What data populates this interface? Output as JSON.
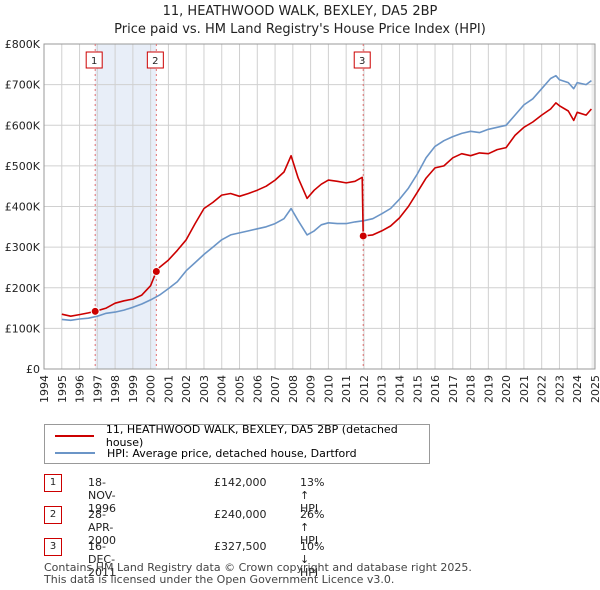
{
  "title_line1": "11, HEATHWOOD WALK, BEXLEY, DA5 2BP",
  "title_line2": "Price paid vs. HM Land Registry's House Price Index (HPI)",
  "colors": {
    "property": "#cc0000",
    "hpi": "#6b95c7",
    "shade": "#e8eef8",
    "grid": "#d0d0d0",
    "marker_line": "#e07070"
  },
  "legend": {
    "property_label": "11, HEATHWOOD WALK, BEXLEY, DA5 2BP (detached house)",
    "hpi_label": "HPI: Average price, detached house, Dartford"
  },
  "sales": [
    {
      "num": "1",
      "date": "18-NOV-1996",
      "price": "£142,000",
      "hpi": "13% ↑ HPI"
    },
    {
      "num": "2",
      "date": "28-APR-2000",
      "price": "£240,000",
      "hpi": "26% ↑ HPI"
    },
    {
      "num": "3",
      "date": "16-DEC-2011",
      "price": "£327,500",
      "hpi": "10% ↓ HPI"
    }
  ],
  "footer_line1": "Contains HM Land Registry data © Crown copyright and database right 2025.",
  "footer_line2": "This data is licensed under the Open Government Licence v3.0.",
  "chart_data": {
    "type": "line",
    "title": "11, HEATHWOOD WALK, BEXLEY, DA5 2BP — Price paid vs. HM Land Registry's House Price Index (HPI)",
    "xlim": [
      1994,
      2025
    ],
    "ylim": [
      0,
      800000
    ],
    "x_ticks": [
      1994,
      1995,
      1996,
      1997,
      1998,
      1999,
      2000,
      2001,
      2002,
      2003,
      2004,
      2005,
      2006,
      2007,
      2008,
      2009,
      2010,
      2011,
      2012,
      2013,
      2014,
      2015,
      2016,
      2017,
      2018,
      2019,
      2020,
      2021,
      2022,
      2023,
      2024,
      2025
    ],
    "y_ticks": [
      {
        "value": 0,
        "label": "£0"
      },
      {
        "value": 100000,
        "label": "£100K"
      },
      {
        "value": 200000,
        "label": "£200K"
      },
      {
        "value": 300000,
        "label": "£300K"
      },
      {
        "value": 400000,
        "label": "£400K"
      },
      {
        "value": 500000,
        "label": "£500K"
      },
      {
        "value": 600000,
        "label": "£600K"
      },
      {
        "value": 700000,
        "label": "£700K"
      },
      {
        "value": 800000,
        "label": "£800K"
      }
    ],
    "shaded_periods": [
      [
        1996.88,
        2000.32
      ]
    ],
    "markers": [
      {
        "label": "1",
        "x": 1996.88,
        "y": 142000
      },
      {
        "label": "2",
        "x": 2000.32,
        "y": 240000
      },
      {
        "label": "3",
        "x": 2011.96,
        "y": 327500
      }
    ],
    "series": [
      {
        "name": "11, HEATHWOOD WALK, BEXLEY, DA5 2BP (detached house)",
        "color": "#cc0000",
        "x": [
          1995.0,
          1995.5,
          1996.0,
          1996.5,
          1996.88,
          1997.5,
          1998.0,
          1998.5,
          1999.0,
          1999.5,
          2000.0,
          2000.32,
          2000.5,
          2001.0,
          2001.5,
          2002.0,
          2002.5,
          2003.0,
          2003.5,
          2004.0,
          2004.5,
          2005.0,
          2005.5,
          2006.0,
          2006.5,
          2007.0,
          2007.5,
          2007.9,
          2008.3,
          2008.8,
          2009.2,
          2009.6,
          2010.0,
          2010.5,
          2011.0,
          2011.5,
          2011.9,
          2011.96,
          2012.5,
          2013.0,
          2013.5,
          2014.0,
          2014.5,
          2015.0,
          2015.5,
          2016.0,
          2016.5,
          2017.0,
          2017.5,
          2018.0,
          2018.5,
          2019.0,
          2019.5,
          2020.0,
          2020.5,
          2021.0,
          2021.5,
          2022.0,
          2022.5,
          2022.8,
          2023.0,
          2023.5,
          2023.8,
          2024.0,
          2024.5,
          2024.8
        ],
        "values": [
          135000,
          130000,
          134000,
          138000,
          142000,
          150000,
          162000,
          168000,
          172000,
          182000,
          205000,
          240000,
          250000,
          268000,
          292000,
          318000,
          358000,
          395000,
          410000,
          428000,
          432000,
          425000,
          432000,
          440000,
          450000,
          465000,
          485000,
          525000,
          470000,
          420000,
          440000,
          455000,
          465000,
          462000,
          458000,
          462000,
          472000,
          327500,
          330000,
          340000,
          352000,
          372000,
          400000,
          435000,
          470000,
          495000,
          500000,
          520000,
          530000,
          525000,
          532000,
          530000,
          540000,
          545000,
          575000,
          595000,
          608000,
          625000,
          640000,
          655000,
          648000,
          635000,
          612000,
          632000,
          625000,
          640000
        ]
      },
      {
        "name": "HPI: Average price, detached house, Dartford",
        "color": "#6b95c7",
        "x": [
          1995.0,
          1995.5,
          1996.0,
          1996.5,
          1997.0,
          1997.5,
          1998.0,
          1998.5,
          1999.0,
          1999.5,
          2000.0,
          2000.5,
          2001.0,
          2001.5,
          2002.0,
          2002.5,
          2003.0,
          2003.5,
          2004.0,
          2004.5,
          2005.0,
          2005.5,
          2006.0,
          2006.5,
          2007.0,
          2007.5,
          2007.9,
          2008.3,
          2008.8,
          2009.2,
          2009.6,
          2010.0,
          2010.5,
          2011.0,
          2011.5,
          2012.0,
          2012.5,
          2013.0,
          2013.5,
          2014.0,
          2014.5,
          2015.0,
          2015.5,
          2016.0,
          2016.5,
          2017.0,
          2017.5,
          2018.0,
          2018.5,
          2019.0,
          2019.5,
          2020.0,
          2020.5,
          2021.0,
          2021.5,
          2022.0,
          2022.5,
          2022.8,
          2023.0,
          2023.5,
          2023.8,
          2024.0,
          2024.5,
          2024.8
        ],
        "values": [
          122000,
          120000,
          123000,
          125000,
          130000,
          137000,
          140000,
          145000,
          152000,
          160000,
          170000,
          182000,
          198000,
          215000,
          242000,
          262000,
          282000,
          300000,
          318000,
          330000,
          335000,
          340000,
          345000,
          350000,
          358000,
          370000,
          395000,
          365000,
          330000,
          340000,
          355000,
          360000,
          358000,
          358000,
          362000,
          365000,
          370000,
          382000,
          395000,
          418000,
          445000,
          480000,
          520000,
          548000,
          562000,
          572000,
          580000,
          585000,
          582000,
          590000,
          595000,
          600000,
          625000,
          650000,
          665000,
          690000,
          715000,
          722000,
          712000,
          705000,
          690000,
          705000,
          700000,
          710000
        ]
      }
    ]
  }
}
